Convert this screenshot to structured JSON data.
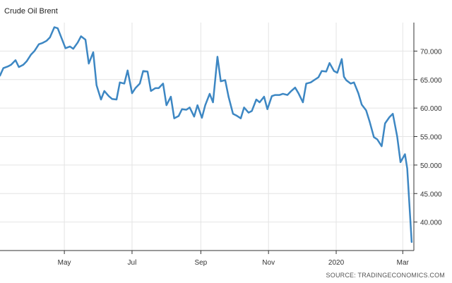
{
  "chart_data": {
    "type": "line",
    "title": "Crude Oil Brent",
    "source": "SOURCE: TRADINGECONOMICS.COM",
    "x_ticks": [
      {
        "label": "May",
        "date": "2019-05-01"
      },
      {
        "label": "Jul",
        "date": "2019-07-01"
      },
      {
        "label": "Sep",
        "date": "2019-09-01"
      },
      {
        "label": "Nov",
        "date": "2019-11-01"
      },
      {
        "label": "2020",
        "date": "2020-01-01"
      },
      {
        "label": "Mar",
        "date": "2020-03-01"
      }
    ],
    "y_ticks": [
      "40.000",
      "45.000",
      "50.000",
      "55.000",
      "60.000",
      "65.000",
      "70.000"
    ],
    "ylim": [
      35,
      75
    ],
    "xlim": [
      "2019-03-04",
      "2020-03-11"
    ],
    "grid": true,
    "colors": {
      "line": "#3d87c3",
      "grid": "#e4e4e4",
      "axis": "#333333"
    },
    "series": [
      {
        "x": [
          "2019-03-04",
          "2019-03-07",
          "2019-03-11",
          "2019-03-14",
          "2019-03-18",
          "2019-03-21",
          "2019-03-25",
          "2019-03-28",
          "2019-04-01",
          "2019-04-04",
          "2019-04-08",
          "2019-04-11",
          "2019-04-15",
          "2019-04-18",
          "2019-04-22",
          "2019-04-25",
          "2019-04-29",
          "2019-05-02",
          "2019-05-06",
          "2019-05-09",
          "2019-05-13",
          "2019-05-16",
          "2019-05-20",
          "2019-05-23",
          "2019-05-27",
          "2019-05-30",
          "2019-06-03",
          "2019-06-06",
          "2019-06-10",
          "2019-06-13",
          "2019-06-17",
          "2019-06-20",
          "2019-06-24",
          "2019-06-27",
          "2019-07-01",
          "2019-07-04",
          "2019-07-08",
          "2019-07-11",
          "2019-07-15",
          "2019-07-18",
          "2019-07-22",
          "2019-07-25",
          "2019-07-29",
          "2019-08-01",
          "2019-08-05",
          "2019-08-08",
          "2019-08-12",
          "2019-08-15",
          "2019-08-19",
          "2019-08-22",
          "2019-08-26",
          "2019-08-29",
          "2019-09-02",
          "2019-09-05",
          "2019-09-09",
          "2019-09-12",
          "2019-09-16",
          "2019-09-19",
          "2019-09-23",
          "2019-09-26",
          "2019-09-30",
          "2019-10-03",
          "2019-10-07",
          "2019-10-10",
          "2019-10-14",
          "2019-10-17",
          "2019-10-21",
          "2019-10-24",
          "2019-10-28",
          "2019-10-31",
          "2019-11-04",
          "2019-11-07",
          "2019-11-11",
          "2019-11-14",
          "2019-11-18",
          "2019-11-21",
          "2019-11-25",
          "2019-11-28",
          "2019-12-02",
          "2019-12-05",
          "2019-12-09",
          "2019-12-12",
          "2019-12-16",
          "2019-12-19",
          "2019-12-23",
          "2019-12-26",
          "2019-12-30",
          "2020-01-02",
          "2020-01-06",
          "2020-01-08",
          "2020-01-10",
          "2020-01-14",
          "2020-01-17",
          "2020-01-21",
          "2020-01-24",
          "2020-01-28",
          "2020-01-31",
          "2020-02-04",
          "2020-02-07",
          "2020-02-11",
          "2020-02-14",
          "2020-02-18",
          "2020-02-21",
          "2020-02-25",
          "2020-02-28",
          "2020-03-03",
          "2020-03-05",
          "2020-03-09"
        ],
        "y": [
          65.7,
          67.0,
          67.3,
          67.6,
          68.4,
          67.2,
          67.6,
          68.2,
          69.4,
          70.0,
          71.2,
          71.4,
          71.8,
          72.4,
          74.2,
          74.0,
          72.0,
          70.5,
          70.8,
          70.4,
          71.5,
          72.6,
          72.0,
          67.8,
          69.8,
          64.0,
          61.5,
          63.0,
          62.1,
          61.6,
          61.5,
          64.5,
          64.3,
          66.6,
          62.6,
          63.5,
          64.3,
          66.5,
          66.4,
          63.0,
          63.5,
          63.5,
          64.3,
          60.5,
          62.0,
          58.2,
          58.6,
          59.8,
          59.7,
          60.1,
          58.5,
          60.5,
          58.3,
          60.5,
          62.5,
          61.0,
          69.0,
          64.7,
          64.9,
          62.0,
          59.0,
          58.7,
          58.2,
          60.1,
          59.2,
          59.5,
          61.5,
          61.0,
          62.0,
          59.8,
          62.1,
          62.3,
          62.3,
          62.5,
          62.3,
          62.9,
          63.6,
          62.6,
          61.0,
          64.3,
          64.5,
          64.9,
          65.4,
          66.5,
          66.4,
          67.9,
          66.5,
          66.2,
          68.6,
          65.5,
          64.9,
          64.3,
          64.5,
          62.6,
          60.6,
          59.6,
          57.7,
          54.9,
          54.5,
          53.3,
          57.3,
          58.4,
          59.0,
          55.0,
          50.5,
          51.9,
          49.4,
          36.5
        ]
      }
    ]
  }
}
